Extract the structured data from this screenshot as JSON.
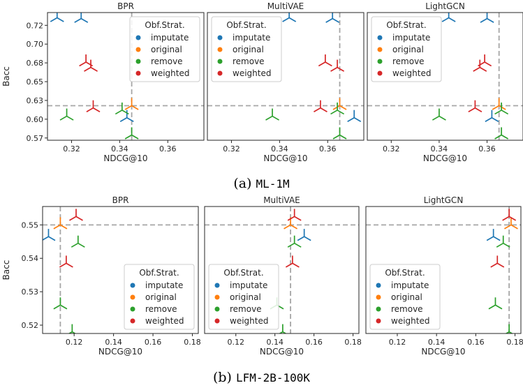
{
  "figure_label_a": "(a)",
  "figure_label_b": "(b)",
  "dataset_a": "ML-1M",
  "dataset_b": "LFM-2B-100K",
  "legend_title": "Obf.Strat.",
  "strategies": [
    "imputate",
    "original",
    "remove",
    "weighted"
  ],
  "colors": {
    "imputate": "#1f77b4",
    "original": "#ff7f0e",
    "remove": "#2ca02c",
    "weighted": "#d62728"
  },
  "chart_data": [
    {
      "type": "scatter",
      "group": "a",
      "title": "BPR",
      "xlabel": "NDCG@10",
      "ylabel": "Bacc",
      "xlim": [
        0.31,
        0.375
      ],
      "ylim": [
        0.572,
        0.742
      ],
      "xticks": [
        0.32,
        0.34,
        0.36
      ],
      "yticks": [
        0.575,
        0.6,
        0.625,
        0.65,
        0.675,
        0.7,
        0.725
      ],
      "ref_x": 0.345,
      "ref_y": 0.618,
      "legend": "top-right",
      "series": [
        {
          "name": "imputate",
          "points": [
            [
              0.314,
              0.735
            ],
            [
              0.324,
              0.734
            ],
            [
              0.343,
              0.602
            ]
          ]
        },
        {
          "name": "original",
          "points": [
            [
              0.345,
              0.618
            ]
          ]
        },
        {
          "name": "remove",
          "points": [
            [
              0.318,
              0.604
            ],
            [
              0.341,
              0.612
            ],
            [
              0.345,
              0.579
            ]
          ]
        },
        {
          "name": "weighted",
          "points": [
            [
              0.326,
              0.676
            ],
            [
              0.328,
              0.669
            ],
            [
              0.329,
              0.615
            ]
          ]
        }
      ]
    },
    {
      "type": "scatter",
      "group": "a",
      "title": "MultiVAE",
      "xlabel": "NDCG@10",
      "ylabel": "",
      "xlim": [
        0.31,
        0.375
      ],
      "ylim": [
        0.572,
        0.742
      ],
      "xticks": [
        0.32,
        0.34,
        0.36
      ],
      "yticks": [
        0.575,
        0.6,
        0.625,
        0.65,
        0.675,
        0.7,
        0.725
      ],
      "ref_x": 0.365,
      "ref_y": 0.618,
      "legend": "top-left",
      "series": [
        {
          "name": "imputate",
          "points": [
            [
              0.344,
              0.735
            ],
            [
              0.362,
              0.734
            ],
            [
              0.371,
              0.602
            ]
          ]
        },
        {
          "name": "original",
          "points": [
            [
              0.365,
              0.618
            ]
          ]
        },
        {
          "name": "remove",
          "points": [
            [
              0.337,
              0.604
            ],
            [
              0.364,
              0.612
            ],
            [
              0.365,
              0.579
            ]
          ]
        },
        {
          "name": "weighted",
          "points": [
            [
              0.359,
              0.676
            ],
            [
              0.364,
              0.669
            ],
            [
              0.357,
              0.615
            ]
          ]
        }
      ]
    },
    {
      "type": "scatter",
      "group": "a",
      "title": "LightGCN",
      "xlabel": "NDCG@10",
      "ylabel": "",
      "xlim": [
        0.31,
        0.375
      ],
      "ylim": [
        0.572,
        0.742
      ],
      "xticks": [
        0.32,
        0.34,
        0.36
      ],
      "yticks": [
        0.575,
        0.6,
        0.625,
        0.65,
        0.675,
        0.7,
        0.725
      ],
      "ref_x": 0.365,
      "ref_y": 0.618,
      "legend": "top-left",
      "series": [
        {
          "name": "imputate",
          "points": [
            [
              0.344,
              0.735
            ],
            [
              0.36,
              0.734
            ],
            [
              0.362,
              0.602
            ]
          ]
        },
        {
          "name": "original",
          "points": [
            [
              0.365,
              0.618
            ]
          ]
        },
        {
          "name": "remove",
          "points": [
            [
              0.34,
              0.604
            ],
            [
              0.366,
              0.612
            ],
            [
              0.366,
              0.579
            ]
          ]
        },
        {
          "name": "weighted",
          "points": [
            [
              0.359,
              0.676
            ],
            [
              0.357,
              0.669
            ],
            [
              0.355,
              0.615
            ]
          ]
        }
      ]
    },
    {
      "type": "scatter",
      "group": "b",
      "title": "BPR",
      "xlabel": "NDCG@10",
      "ylabel": "Bacc",
      "xlim": [
        0.104,
        0.183
      ],
      "ylim": [
        0.5175,
        0.5555
      ],
      "xticks": [
        0.12,
        0.14,
        0.16,
        0.18
      ],
      "yticks": [
        0.52,
        0.53,
        0.54,
        0.55
      ],
      "ref_x": 0.113,
      "ref_y": 0.55,
      "legend": "bottom-right",
      "series": [
        {
          "name": "imputate",
          "points": [
            [
              0.107,
              0.5465
            ]
          ]
        },
        {
          "name": "original",
          "points": [
            [
              0.113,
              0.55
            ]
          ]
        },
        {
          "name": "remove",
          "points": [
            [
              0.122,
              0.5445
            ],
            [
              0.113,
              0.526
            ],
            [
              0.119,
              0.518
            ]
          ]
        },
        {
          "name": "weighted",
          "points": [
            [
              0.121,
              0.5525
            ],
            [
              0.116,
              0.5385
            ]
          ]
        }
      ]
    },
    {
      "type": "scatter",
      "group": "b",
      "title": "MultiVAE",
      "xlabel": "NDCG@10",
      "ylabel": "",
      "xlim": [
        0.104,
        0.183
      ],
      "ylim": [
        0.5175,
        0.5555
      ],
      "xticks": [
        0.12,
        0.14,
        0.16,
        0.18
      ],
      "yticks": [
        0.52,
        0.53,
        0.54,
        0.55
      ],
      "ref_x": 0.148,
      "ref_y": 0.55,
      "legend": "bottom-left",
      "series": [
        {
          "name": "imputate",
          "points": [
            [
              0.155,
              0.5465
            ]
          ]
        },
        {
          "name": "original",
          "points": [
            [
              0.148,
              0.55
            ]
          ]
        },
        {
          "name": "remove",
          "points": [
            [
              0.15,
              0.5445
            ],
            [
              0.141,
              0.526
            ],
            [
              0.144,
              0.518
            ]
          ]
        },
        {
          "name": "weighted",
          "points": [
            [
              0.15,
              0.5525
            ],
            [
              0.149,
              0.5385
            ]
          ]
        }
      ]
    },
    {
      "type": "scatter",
      "group": "b",
      "title": "LightGCN",
      "xlabel": "NDCG@10",
      "ylabel": "",
      "xlim": [
        0.104,
        0.183
      ],
      "ylim": [
        0.5175,
        0.5555
      ],
      "xticks": [
        0.12,
        0.14,
        0.16,
        0.18
      ],
      "yticks": [
        0.52,
        0.53,
        0.54,
        0.55
      ],
      "ref_x": 0.177,
      "ref_y": 0.55,
      "legend": "bottom-left",
      "series": [
        {
          "name": "imputate",
          "points": [
            [
              0.169,
              0.5465
            ]
          ]
        },
        {
          "name": "original",
          "points": [
            [
              0.178,
              0.55
            ]
          ]
        },
        {
          "name": "remove",
          "points": [
            [
              0.174,
              0.5445
            ],
            [
              0.17,
              0.526
            ],
            [
              0.177,
              0.518
            ]
          ]
        },
        {
          "name": "weighted",
          "points": [
            [
              0.177,
              0.5525
            ],
            [
              0.171,
              0.5385
            ]
          ]
        }
      ]
    }
  ]
}
